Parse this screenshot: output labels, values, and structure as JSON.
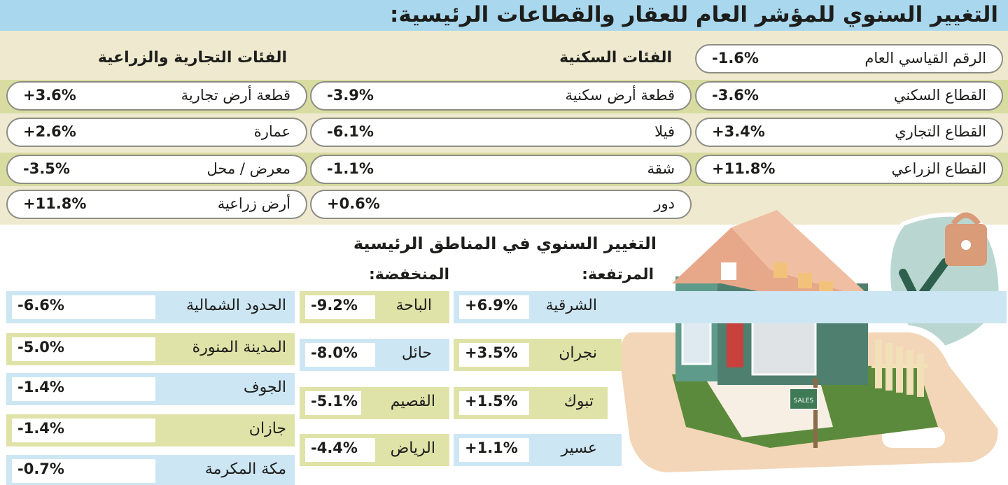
{
  "title": "التغيير السنوي للمؤشر العام للعقار والقطاعات الرئيسية:",
  "headers": {
    "residential": "الفئات السكنية",
    "commercial_agricultural": "الفئات التجارية والزراعية"
  },
  "sectors": [
    {
      "label": "الرقم القياسي العام",
      "value": "-1.6%"
    },
    {
      "label": "القطاع السكني",
      "value": "-3.6%"
    },
    {
      "label": "القطاع التجاري",
      "value": "+3.4%"
    },
    {
      "label": "القطاع الزراعي",
      "value": "+11.8%"
    }
  ],
  "residential": [
    {
      "label": "قطعة أرض سكنية",
      "value": "-3.9%"
    },
    {
      "label": "فيلا",
      "value": "-6.1%"
    },
    {
      "label": "شقة",
      "value": "-1.1%"
    },
    {
      "label": "دور",
      "value": "+0.6%"
    }
  ],
  "commercial": [
    {
      "label": "قطعة أرض تجارية",
      "value": "+3.6%"
    },
    {
      "label": "عمارة",
      "value": "+2.6%"
    },
    {
      "label": "معرض / محل",
      "value": "-3.5%"
    },
    {
      "label": "أرض زراعية",
      "value": "+11.8%"
    }
  ],
  "regions_title": "التغيير السنوي في المناطق الرئيسية",
  "regions_headers": {
    "high": "المرتفعة:",
    "low": "المنخفضة:"
  },
  "regions_high": [
    {
      "label": "الشرقية",
      "value": "+6.9%"
    },
    {
      "label": "نجران",
      "value": "+3.5%"
    },
    {
      "label": "تبوك",
      "value": "+1.5%"
    },
    {
      "label": "عسير",
      "value": "+1.1%"
    }
  ],
  "regions_low_middle": [
    {
      "label": "الباحة",
      "value": "-9.2%"
    },
    {
      "label": "حائل",
      "value": "-8.0%"
    },
    {
      "label": "القصيم",
      "value": "-5.1%"
    },
    {
      "label": "الرياض",
      "value": "-4.4%"
    }
  ],
  "regions_low_left": [
    {
      "label": "الحدود الشمالية",
      "value": "-6.6%"
    },
    {
      "label": "المدينة المنورة",
      "value": "-5.0%"
    },
    {
      "label": "الجوف",
      "value": "-1.4%"
    },
    {
      "label": "جازان",
      "value": "-1.4%"
    },
    {
      "label": "مكة المكرمة",
      "value": "-0.7%"
    }
  ],
  "illustration": {
    "sign_text": "SALES",
    "colors": {
      "roof": "#e7a889",
      "wall": "#5f9b8a",
      "phone": "#f3d6b8",
      "shield": "#b9d7d0"
    }
  }
}
